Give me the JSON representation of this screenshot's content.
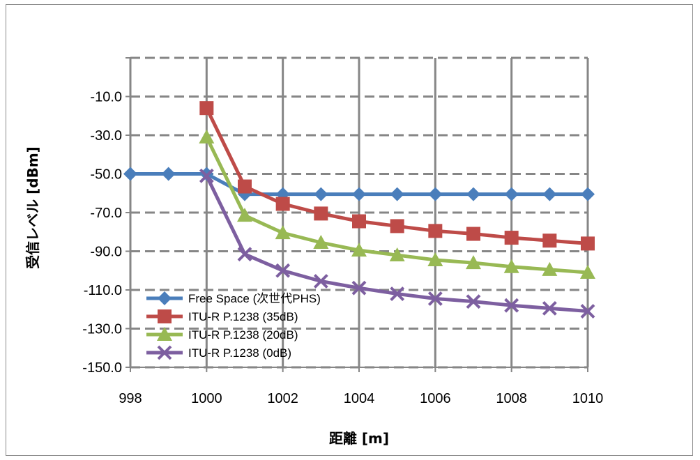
{
  "chart_data": {
    "type": "line",
    "xlabel": "距離 [m]",
    "ylabel": "受信レベル [dBm]",
    "xlim": [
      998,
      1010
    ],
    "ylim": [
      -150,
      10
    ],
    "x_ticks": [
      "998",
      "1000",
      "1002",
      "1004",
      "1006",
      "1008",
      "1010"
    ],
    "y_ticks": [
      "-10.0",
      "-30.0",
      "-50.0",
      "-70.0",
      "-90.0",
      "-110.0",
      "-130.0",
      "-150.0"
    ],
    "grid": true,
    "legend_position": "bottom-left",
    "series": [
      {
        "name": "Free Space (次世代PHS)",
        "color": "#4a7ebb",
        "marker": "diamond",
        "x": [
          998,
          999,
          1000,
          1001,
          1002,
          1003,
          1004,
          1005,
          1006,
          1007,
          1008,
          1009,
          1010
        ],
        "y": [
          -50.0,
          -50.0,
          -50.0,
          -60.5,
          -60.5,
          -60.5,
          -60.5,
          -60.5,
          -60.5,
          -60.5,
          -60.5,
          -60.5,
          -60.5
        ]
      },
      {
        "name": "ITU-R P.1238 (35dB)",
        "color": "#be4b48",
        "marker": "square",
        "x": [
          1000,
          1001,
          1002,
          1003,
          1004,
          1005,
          1006,
          1007,
          1008,
          1009,
          1010
        ],
        "y": [
          -16.0,
          -56.5,
          -65.5,
          -70.5,
          -74.5,
          -77.0,
          -79.5,
          -81.0,
          -83.0,
          -84.5,
          -86.0
        ]
      },
      {
        "name": "ITU-R P.1238 (20dB)",
        "color": "#98b954",
        "marker": "triangle",
        "x": [
          1000,
          1001,
          1002,
          1003,
          1004,
          1005,
          1006,
          1007,
          1008,
          1009,
          1010
        ],
        "y": [
          -31.0,
          -71.5,
          -80.5,
          -85.5,
          -89.5,
          -92.0,
          -94.5,
          -96.0,
          -98.0,
          -99.5,
          -101.0
        ]
      },
      {
        "name": "ITU-R P.1238 (0dB)",
        "color": "#7d5fa0",
        "marker": "x",
        "x": [
          1000,
          1001,
          1002,
          1003,
          1004,
          1005,
          1006,
          1007,
          1008,
          1009,
          1010
        ],
        "y": [
          -51.0,
          -91.5,
          -100.0,
          -105.5,
          -109.0,
          -112.0,
          -114.5,
          -116.0,
          -118.0,
          -119.5,
          -121.0
        ]
      }
    ]
  }
}
